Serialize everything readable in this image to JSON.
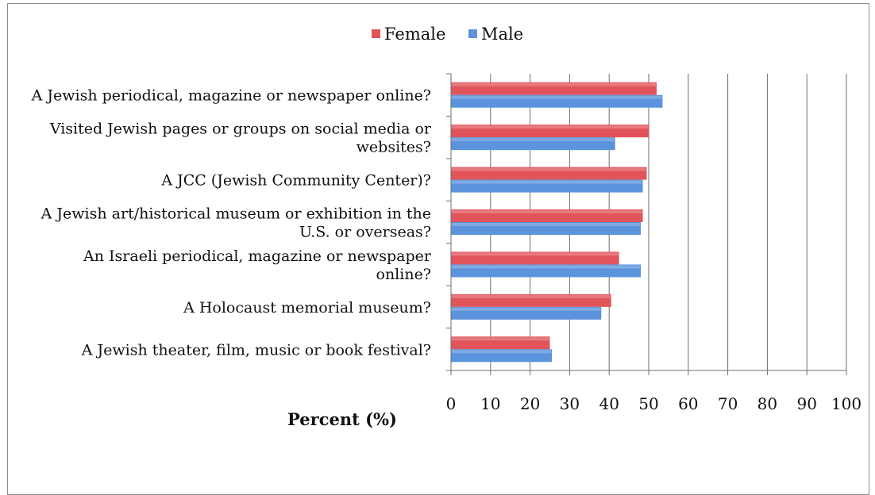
{
  "chart_data": {
    "type": "bar",
    "orientation": "horizontal",
    "categories": [
      [
        "A Jewish periodical, magazine or newspaper online?"
      ],
      [
        "Visited Jewish pages or groups on social media or",
        "websites?"
      ],
      [
        "A JCC (Jewish Community Center)?"
      ],
      [
        "A Jewish art/historical museum or exhibition in the",
        "U.S. or overseas?"
      ],
      [
        "An Israeli periodical, magazine or newspaper",
        "online?"
      ],
      [
        "A Holocaust memorial museum?"
      ],
      [
        "A Jewish theater, film, music or book festival?"
      ]
    ],
    "series": [
      {
        "name": "Female",
        "color": "#e0545a",
        "values": [
          52,
          50,
          49.5,
          48.5,
          42.5,
          40.5,
          25
        ]
      },
      {
        "name": "Male",
        "color": "#5b93dc",
        "values": [
          53.5,
          41.5,
          48.5,
          48,
          48,
          38,
          25.5
        ]
      }
    ],
    "xlabel": "Percent (%)",
    "xlim": [
      0,
      100
    ],
    "xticks": [
      "0",
      "10",
      "20",
      "30",
      "40",
      "50",
      "60",
      "70",
      "80",
      "90",
      "100"
    ],
    "grid": "vertical",
    "legend_position": "top"
  }
}
